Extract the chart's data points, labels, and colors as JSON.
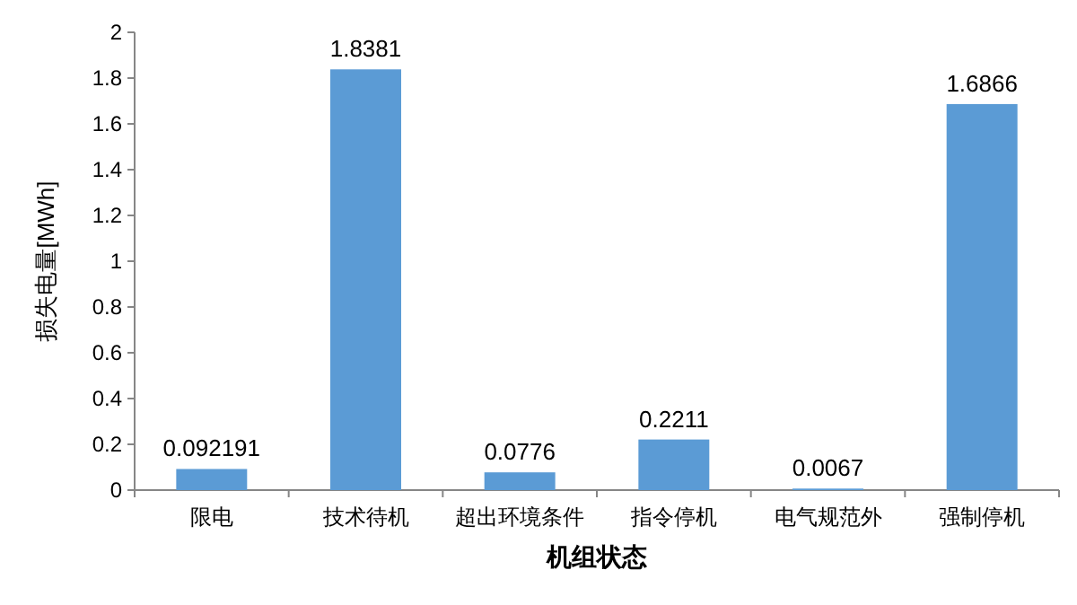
{
  "chart_data": {
    "type": "bar",
    "xlabel": "机组状态",
    "ylabel": "损失电量[MWh]",
    "categories": [
      "限电",
      "技术待机",
      "超出环境条件",
      "指令停机",
      "电气规范外",
      "强制停机"
    ],
    "values": [
      0.092191,
      1.8381,
      0.0776,
      0.2211,
      0.0067,
      1.6866
    ],
    "color": "#5b9bd5",
    "ylim": [
      0,
      2
    ],
    "yticks": [
      0,
      0.2,
      0.4,
      0.6,
      0.8,
      1,
      1.2,
      1.4,
      1.6,
      1.8,
      2
    ],
    "data_labels": true
  }
}
